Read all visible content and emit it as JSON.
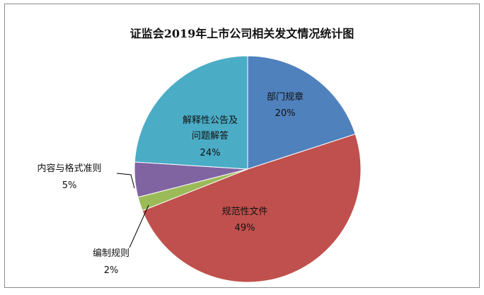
{
  "chart_data": {
    "type": "pie",
    "title": "证监会2019年上市公司相关发文情况统计图",
    "slices": [
      {
        "name": "部门规章",
        "value": 20,
        "percent_label": "20%",
        "color": "#4F81BD"
      },
      {
        "name": "规范性文件",
        "value": 49,
        "percent_label": "49%",
        "color": "#C0504D"
      },
      {
        "name": "编制规则",
        "value": 2,
        "percent_label": "2%",
        "color": "#9BBB59"
      },
      {
        "name": "内容与格式准则",
        "value": 5,
        "percent_label": "5%",
        "color": "#8064A2"
      },
      {
        "name": "解释性公告及问题解答",
        "value": 24,
        "percent_label": "24%",
        "color": "#4BACC6"
      }
    ],
    "legend": "none"
  }
}
